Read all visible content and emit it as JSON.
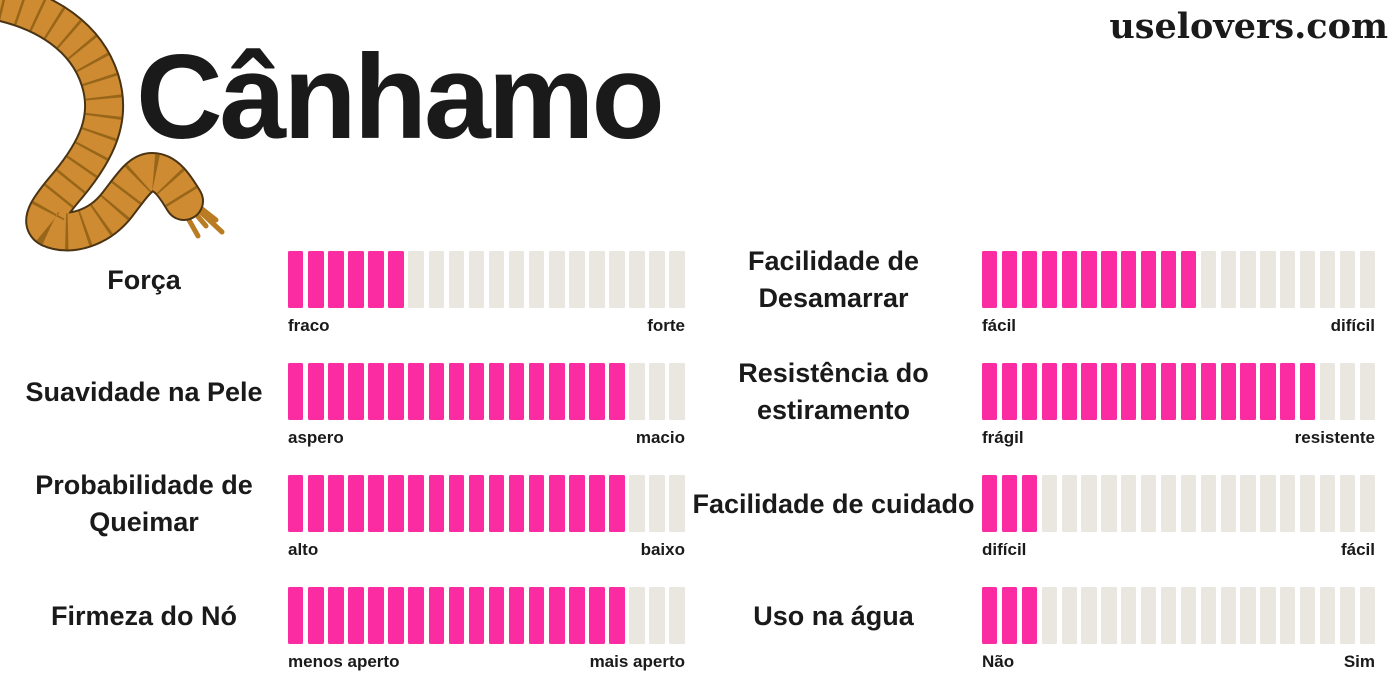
{
  "header": {
    "title": "Cânhamo",
    "website": "uselovers.com"
  },
  "colors": {
    "filled": "#FB2BA2",
    "empty": "#EAE6E0",
    "text": "#1A1A1A",
    "rope_fill": "#CF8B31",
    "rope_twist": "#8A5C14",
    "rope_outline": "#4A3413",
    "background": "#FFFFFF"
  },
  "icons": {
    "rope": "rope-illustration"
  },
  "chart_data": {
    "type": "bar",
    "title": "Cânhamo",
    "segments_per_bar": 20,
    "value_scale": [
      0,
      20
    ],
    "grid": false,
    "legend_position": "none",
    "series": [
      {
        "name": "Força",
        "value": 6,
        "min_label": "fraco",
        "max_label": "forte",
        "column": "left"
      },
      {
        "name": "Suavidade na Pele",
        "value": 17,
        "min_label": "aspero",
        "max_label": "macio",
        "column": "left"
      },
      {
        "name": "Probabilidade de Queimar",
        "value": 17,
        "min_label": "alto",
        "max_label": "baixo",
        "column": "left"
      },
      {
        "name": "Firmeza do Nó",
        "value": 17,
        "min_label": "menos aperto",
        "max_label": "mais aperto",
        "column": "left"
      },
      {
        "name": "Facilidade de Desamarrar",
        "value": 11,
        "min_label": "fácil",
        "max_label": "difícil",
        "column": "right"
      },
      {
        "name": "Resistência do estiramento",
        "value": 17,
        "min_label": "frágil",
        "max_label": "resistente",
        "column": "right"
      },
      {
        "name": "Facilidade de cuidado",
        "value": 3,
        "min_label": "difícil",
        "max_label": "fácil",
        "column": "right"
      },
      {
        "name": "Uso na água",
        "value": 3,
        "min_label": "Não",
        "max_label": "Sim",
        "column": "right"
      }
    ]
  }
}
